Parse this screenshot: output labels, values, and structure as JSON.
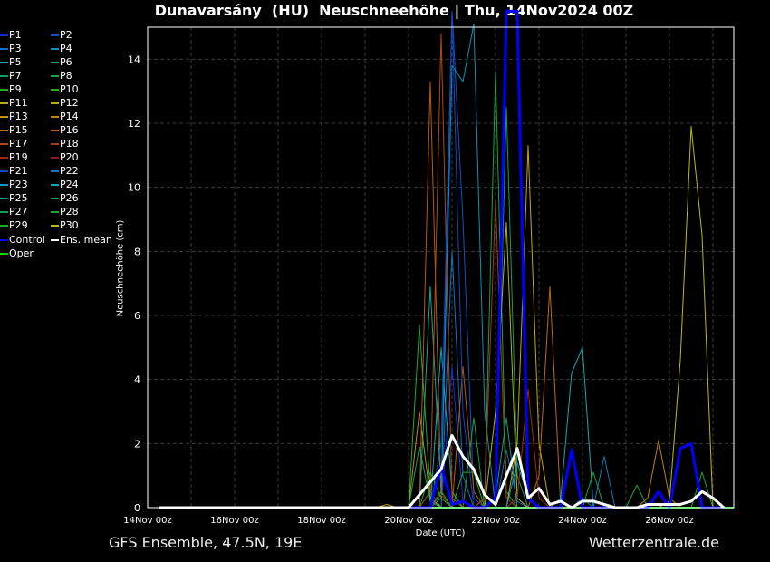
{
  "title": "Dunavarsány  (HU)  Neuschneehöhe | Thu, 14Nov2024 00Z",
  "footer_left": "GFS Ensemble, 47.5N, 19E",
  "footer_right": "Wetterzentrale.de",
  "chart_data": {
    "type": "line",
    "xlabel": "Date (UTC)",
    "ylabel": "Neuschneehöhe (cm)",
    "ylim": [
      0,
      15
    ],
    "x_range": [
      "14Nov 00z",
      "27Nov 12z"
    ],
    "x_ticks": [
      "14Nov 00z",
      "16Nov 00z",
      "18Nov 00z",
      "20Nov 00z",
      "22Nov 00z",
      "24Nov 00z",
      "26Nov 00z"
    ],
    "y_ticks": [
      "0",
      "2",
      "4",
      "6",
      "8",
      "10",
      "12",
      "14"
    ],
    "grid": true,
    "legend_placement": "left outside",
    "first_time": "14Nov 06z",
    "last_time": "27Nov 06z",
    "series": [
      {
        "name": "P1",
        "color": "#1030d0",
        "points": [
          [
            "21Nov 00z",
            4.4
          ],
          [
            "21Nov 06z",
            0.2
          ]
        ]
      },
      {
        "name": "P2",
        "color": "#1050c8",
        "points": [
          [
            "20Nov 18z",
            0.5
          ],
          [
            "21Nov 00z",
            16
          ],
          [
            "21Nov 06z",
            9
          ],
          [
            "21Nov 12z",
            0.3
          ]
        ]
      },
      {
        "name": "P3",
        "color": "#1070c0",
        "points": [
          [
            "21Nov 00z",
            8
          ],
          [
            "21Nov 06z",
            1
          ],
          [
            "22Nov 06z",
            1.8
          ],
          [
            "22Nov 12z",
            0.2
          ]
        ]
      },
      {
        "name": "P4",
        "color": "#1090b8",
        "points": [
          [
            "20Nov 18z",
            0.3
          ],
          [
            "21Nov 00z",
            13.8
          ],
          [
            "21Nov 06z",
            13.3
          ],
          [
            "21Nov 12z",
            15.1
          ],
          [
            "21Nov 18z",
            3
          ],
          [
            "22Nov 00z",
            0
          ]
        ]
      },
      {
        "name": "P5",
        "color": "#10a8b0",
        "points": [
          [
            "20Nov 18z",
            5
          ],
          [
            "21Nov 00z",
            0.5
          ]
        ]
      },
      {
        "name": "P6",
        "color": "#10a890",
        "points": [
          [
            "20Nov 12z",
            6.9
          ],
          [
            "20Nov 18z",
            0.5
          ]
        ]
      },
      {
        "name": "P7",
        "color": "#10a060",
        "points": [
          [
            "22Nov 06z",
            12.5
          ],
          [
            "22Nov 12z",
            1
          ],
          [
            "22Nov 18z",
            0
          ]
        ]
      },
      {
        "name": "P8",
        "color": "#10a840",
        "points": [
          [
            "21Nov 18z",
            0.3
          ],
          [
            "22Nov 00z",
            13.6
          ],
          [
            "22Nov 06z",
            0.5
          ]
        ]
      },
      {
        "name": "P9",
        "color": "#18b020",
        "points": [
          [
            "20Nov 06z",
            5.7
          ],
          [
            "20Nov 12z",
            0.5
          ]
        ]
      },
      {
        "name": "P10",
        "color": "#28b010",
        "points": [
          [
            "20Nov 18z",
            0.5
          ],
          [
            "21Nov 06z",
            1.1
          ],
          [
            "21Nov 12z",
            1.1
          ],
          [
            "21Nov 18z",
            0
          ]
        ]
      },
      {
        "name": "P11",
        "color": "#b8b010",
        "points": [
          [
            "22Nov 00z",
            3
          ],
          [
            "22Nov 06z",
            8.9
          ],
          [
            "22Nov 12z",
            0.3
          ]
        ]
      },
      {
        "name": "P12",
        "color": "#c0a810",
        "points": [
          [
            "22Nov 12z",
            2
          ],
          [
            "22Nov 18z",
            11.3
          ],
          [
            "23Nov 00z",
            2
          ],
          [
            "23Nov 06z",
            0
          ]
        ]
      },
      {
        "name": "P13",
        "color": "#c09010",
        "points": [
          [
            "19Nov 12z",
            0.1
          ],
          [
            "20Nov 06z",
            3
          ],
          [
            "20Nov 12z",
            0.3
          ]
        ]
      },
      {
        "name": "P14",
        "color": "#c08010",
        "points": [
          [
            "25Nov 12z",
            0.3
          ],
          [
            "25Nov 18z",
            2.1
          ],
          [
            "26Nov 00z",
            0.3
          ]
        ]
      },
      {
        "name": "P15",
        "color": "#c06a10",
        "points": [
          [
            "23Nov 00z",
            1
          ],
          [
            "23Nov 06z",
            6.9
          ],
          [
            "23Nov 12z",
            0
          ]
        ]
      },
      {
        "name": "P16",
        "color": "#b85a10",
        "points": [
          [
            "20Nov 12z",
            13.3
          ],
          [
            "20Nov 18z",
            0.3
          ],
          [
            "21Nov 06z",
            4.4
          ],
          [
            "21Nov 12z",
            0.5
          ]
        ]
      },
      {
        "name": "P17",
        "color": "#b04a10",
        "points": [
          [
            "20Nov 12z",
            0.5
          ],
          [
            "20Nov 18z",
            14.8
          ],
          [
            "21Nov 00z",
            0.3
          ]
        ]
      },
      {
        "name": "P18",
        "color": "#a83a10",
        "points": [
          [
            "21Nov 18z",
            0.3
          ],
          [
            "22Nov 00z",
            9.6
          ],
          [
            "22Nov 06z",
            0.3
          ]
        ]
      },
      {
        "name": "P19",
        "color": "#a02a10",
        "points": [
          [
            "22Nov 12z",
            0.3
          ],
          [
            "22Nov 18z",
            3.7
          ],
          [
            "23Nov 00z",
            0.3
          ]
        ]
      },
      {
        "name": "P20",
        "color": "#901818",
        "points": [
          [
            "20Nov 18z",
            0.4
          ],
          [
            "21Nov 00z",
            0
          ]
        ]
      },
      {
        "name": "P21",
        "color": "#1048c0",
        "points": [
          [
            "20Nov 18z",
            2
          ],
          [
            "21Nov 00z",
            16
          ],
          [
            "21Nov 06z",
            3
          ],
          [
            "21Nov 12z",
            0
          ]
        ]
      },
      {
        "name": "P22",
        "color": "#1078b8",
        "points": [
          [
            "24Nov 00z",
            0.3
          ],
          [
            "24Nov 12z",
            1.6
          ],
          [
            "24Nov 18z",
            0
          ]
        ]
      },
      {
        "name": "P23",
        "color": "#1098b8",
        "points": [
          [
            "22Nov 12z",
            1.4
          ],
          [
            "22Nov 18z",
            0.3
          ]
        ]
      },
      {
        "name": "P24",
        "color": "#10a8b8",
        "points": [
          [
            "23Nov 12z",
            0.3
          ],
          [
            "23Nov 18z",
            4.2
          ],
          [
            "24Nov 00z",
            5.0
          ],
          [
            "24Nov 06z",
            0
          ]
        ]
      },
      {
        "name": "P25",
        "color": "#10a088",
        "points": [
          [
            "22Nov 00z",
            0.3
          ],
          [
            "22Nov 06z",
            2.8
          ],
          [
            "22Nov 12z",
            0
          ]
        ]
      },
      {
        "name": "P26",
        "color": "#10a070",
        "points": [
          [
            "20Nov 00z",
            0
          ],
          [
            "20Nov 06z",
            1.9
          ],
          [
            "20Nov 12z",
            0.2
          ]
        ]
      },
      {
        "name": "P27",
        "color": "#10a050",
        "points": [
          [
            "21Nov 12z",
            2.8
          ],
          [
            "21Nov 18z",
            0
          ]
        ]
      },
      {
        "name": "P28",
        "color": "#18a838",
        "points": [
          [
            "24Nov 06z",
            1.1
          ],
          [
            "24Nov 12z",
            0
          ],
          [
            "25Nov 06z",
            0.7
          ],
          [
            "25Nov 12z",
            0
          ],
          [
            "26Nov 18z",
            1.1
          ],
          [
            "27Nov 00z",
            0
          ]
        ]
      },
      {
        "name": "P29",
        "color": "#18b020",
        "points": [
          [
            "20Nov 12z",
            1.1
          ],
          [
            "20Nov 18z",
            0.3
          ]
        ]
      },
      {
        "name": "P30",
        "color": "#c0b810",
        "points": [
          [
            "26Nov 00z",
            0.2
          ],
          [
            "26Nov 06z",
            4.6
          ],
          [
            "26Nov 12z",
            11.9
          ],
          [
            "26Nov 18z",
            8.5
          ],
          [
            "27Nov 00z",
            0
          ]
        ]
      },
      {
        "name": "Control",
        "color": "#0000ff",
        "width": 3,
        "points": [
          [
            "20Nov 18z",
            1.3
          ],
          [
            "21Nov 00z",
            0.1
          ],
          [
            "21Nov 06z",
            0.2
          ],
          [
            "22Nov 00z",
            0.3
          ],
          [
            "22Nov 06z",
            16
          ],
          [
            "22Nov 12z",
            16
          ],
          [
            "22Nov 18z",
            0.3
          ],
          [
            "23Nov 18z",
            1.8
          ],
          [
            "24Nov 00z",
            0
          ],
          [
            "25Nov 12z",
            0
          ],
          [
            "25Nov 18z",
            0.5
          ],
          [
            "26Nov 00z",
            0
          ],
          [
            "26Nov 06z",
            1.85
          ],
          [
            "26Nov 12z",
            2.0
          ],
          [
            "26Nov 18z",
            0
          ]
        ]
      },
      {
        "name": "Ens. mean",
        "color": "#ffffff",
        "width": 3,
        "points": [
          [
            "20Nov 00z",
            0
          ],
          [
            "20Nov 06z",
            0.4
          ],
          [
            "20Nov 12z",
            0.8
          ],
          [
            "20Nov 18z",
            1.2
          ],
          [
            "21Nov 00z",
            2.25
          ],
          [
            "21Nov 06z",
            1.6
          ],
          [
            "21Nov 12z",
            1.2
          ],
          [
            "21Nov 18z",
            0.4
          ],
          [
            "22Nov 00z",
            0.1
          ],
          [
            "22Nov 06z",
            1.0
          ],
          [
            "22Nov 12z",
            1.85
          ],
          [
            "22Nov 18z",
            0.3
          ],
          [
            "23Nov 00z",
            0.6
          ],
          [
            "23Nov 06z",
            0.1
          ],
          [
            "23Nov 12z",
            0.2
          ],
          [
            "23Nov 18z",
            0
          ],
          [
            "24Nov 00z",
            0.2
          ],
          [
            "24Nov 06z",
            0.2
          ],
          [
            "24Nov 12z",
            0.1
          ],
          [
            "24Nov 18z",
            0
          ],
          [
            "25Nov 12z",
            0.1
          ],
          [
            "25Nov 18z",
            0.1
          ],
          [
            "26Nov 00z",
            0.1
          ],
          [
            "26Nov 06z",
            0.1
          ],
          [
            "26Nov 12z",
            0.2
          ],
          [
            "26Nov 18z",
            0.5
          ],
          [
            "27Nov 00z",
            0.3
          ],
          [
            "27Nov 06z",
            0
          ]
        ]
      },
      {
        "name": "Oper",
        "color": "#00d000",
        "width": 2,
        "points": []
      }
    ]
  }
}
